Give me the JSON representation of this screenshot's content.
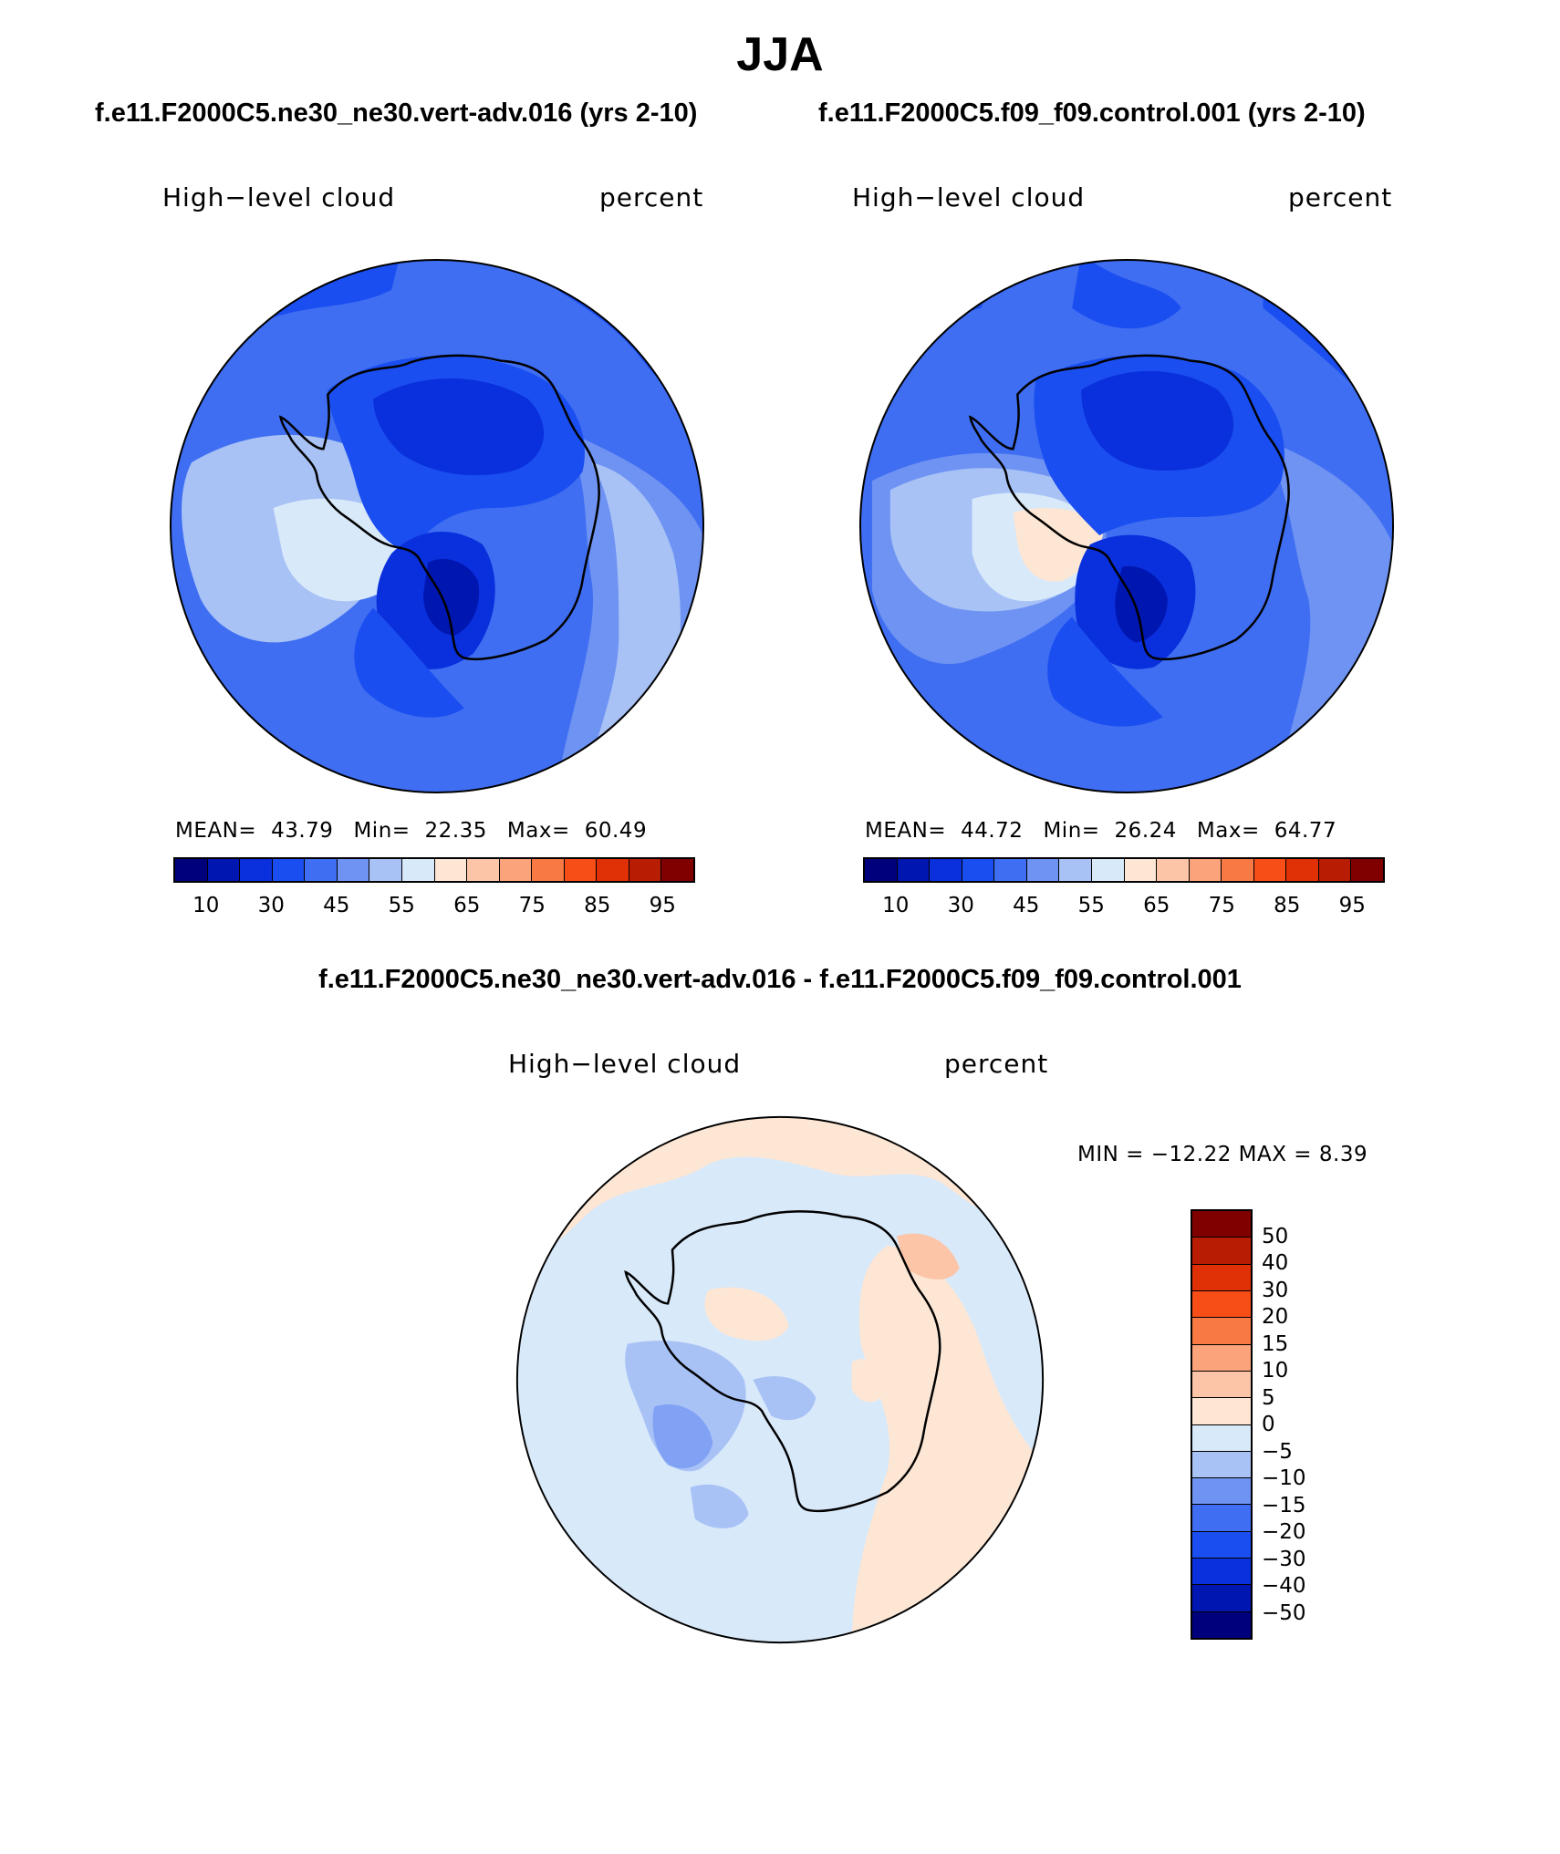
{
  "title": "JJA",
  "panels": [
    {
      "case_title": "f.e11.F2000C5.ne30_ne30.vert-adv.016 (yrs 2-10)",
      "variable": "High−level cloud",
      "units": "percent",
      "stats": {
        "mean_label": "MEAN=",
        "mean": "43.79",
        "min_label": "Min=",
        "min": "22.35",
        "max_label": "Max=",
        "max": "60.49"
      }
    },
    {
      "case_title": "f.e11.F2000C5.f09_f09.control.001 (yrs 2-10)",
      "variable": "High−level cloud",
      "units": "percent",
      "stats": {
        "mean_label": "MEAN=",
        "mean": "44.72",
        "min_label": "Min=",
        "min": "26.24",
        "max_label": "Max=",
        "max": "64.77"
      }
    }
  ],
  "difference": {
    "title": "f.e11.F2000C5.ne30_ne30.vert-adv.016 - f.e11.F2000C5.f09_f09.control.001",
    "variable": "High−level cloud",
    "units": "percent",
    "minmax": "MIN = −12.22  MAX =     8.39"
  },
  "colorbar": {
    "colors": [
      "#00007d",
      "#0016b0",
      "#0a2fdc",
      "#1a4ef0",
      "#3f6ef2",
      "#6f93f3",
      "#a8c2f6",
      "#d8e9fa",
      "#fde6d4",
      "#fcc5a8",
      "#fba37a",
      "#f87944",
      "#f74d16",
      "#e03106",
      "#b81d04",
      "#800000"
    ],
    "tick_labels": [
      "10",
      "30",
      "45",
      "55",
      "65",
      "75",
      "85",
      "95"
    ]
  },
  "diff_colorbar": {
    "colors": [
      "#800000",
      "#b81d04",
      "#e03106",
      "#f74d16",
      "#f87944",
      "#fba37a",
      "#fcc5a8",
      "#fde6d4",
      "#d8e9fa",
      "#a8c2f6",
      "#6f93f3",
      "#3f6ef2",
      "#1a4ef0",
      "#0a2fdc",
      "#0016b0",
      "#00007d"
    ],
    "tick_labels": [
      "50",
      "40",
      "30",
      "20",
      "15",
      "10",
      "5",
      "0",
      "−5",
      "−10",
      "−15",
      "−20",
      "−30",
      "−40",
      "−50"
    ]
  }
}
